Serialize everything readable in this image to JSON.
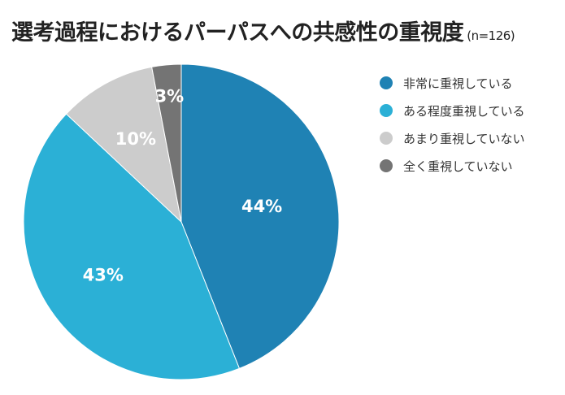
{
  "header": {
    "title": "選考過程におけるパーパスへの共感性の重視度",
    "note": "(n=126)"
  },
  "chart_data": {
    "type": "pie",
    "title": "選考過程におけるパーパスへの共感性の重視度",
    "n": 126,
    "categories": [
      "非常に重視している",
      "ある程度重視している",
      "あまり重視していない",
      "全く重視していない"
    ],
    "values": [
      44,
      43,
      10,
      3
    ],
    "value_labels": [
      "44%",
      "43%",
      "10%",
      "3%"
    ],
    "colors": [
      "#1f82b4",
      "#2bb0d6",
      "#cccccc",
      "#747474"
    ],
    "start": "12 o'clock",
    "direction": "clockwise",
    "legend": "right"
  }
}
